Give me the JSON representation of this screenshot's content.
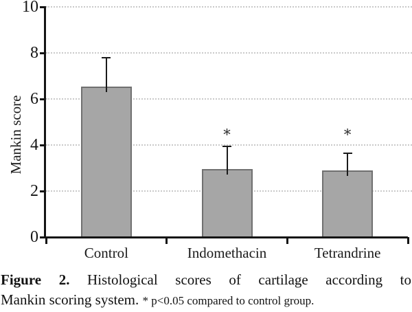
{
  "figure": {
    "caption": {
      "label_bold": "Figure 2.",
      "line1_rest": " Histological scores of cartilage according to",
      "line2_main": "Mankin scoring system. ",
      "note": "* p<0.05 compared to control group."
    }
  },
  "chart_data": {
    "type": "bar",
    "title": "",
    "xlabel": "",
    "ylabel": "Mankin score",
    "categories": [
      "Control",
      "Indomethacin",
      "Tetrandrine"
    ],
    "values": [
      6.55,
      2.95,
      2.9
    ],
    "upper_errors": [
      1.25,
      1.0,
      0.75
    ],
    "significant": [
      false,
      true,
      true
    ],
    "significance_marker": "*",
    "ylim": [
      0,
      10
    ],
    "yticks": [
      0,
      2,
      4,
      6,
      8,
      10
    ],
    "grid": "horizontal-dotted",
    "legend": "none",
    "bar_fill": "#a6a6a6",
    "bar_border": "#707070",
    "axis_color": "#141414",
    "grid_color": "#c9c9c9"
  }
}
